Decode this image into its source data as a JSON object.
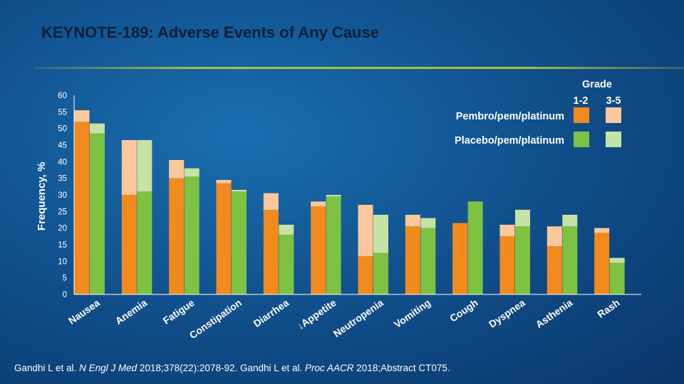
{
  "title": "KEYNOTE-189: Adverse Events of Any Cause",
  "citation": {
    "part1": "Gandhi L et al. ",
    "journal1": "N Engl J Med",
    "part2": " 2018;378(22):2078-92. Gandhi L et al. ",
    "journal2": "Proc AACR",
    "part3": " 2018;Abstract CT075."
  },
  "colors": {
    "pembro_low": "#f28a1e",
    "pembro_high": "#fcc89b",
    "placebo_low": "#7dc242",
    "placebo_high": "#c6e2a4",
    "axis": "#ffffff"
  },
  "chart_data": {
    "type": "bar",
    "stacked": true,
    "ylabel": "Frequency, %",
    "ylim": [
      0,
      60
    ],
    "yticks": [
      0,
      5,
      10,
      15,
      20,
      25,
      30,
      35,
      40,
      45,
      50,
      55,
      60
    ],
    "categories": [
      "Nausea",
      "Anemia",
      "Fatigue",
      "Constipation",
      "Diarrhea",
      "↓Appetite",
      "Neutropenia",
      "Vomiting",
      "Cough",
      "Dyspnea",
      "Asthenia",
      "Rash"
    ],
    "legend": {
      "title": "Grade",
      "grade_labels": [
        "1-2",
        "3-5"
      ],
      "groups": [
        "Pembro/pem/platinum",
        "Placebo/pem/platinum"
      ]
    },
    "series": [
      {
        "name": "Pembro/pem/platinum Grade 1-2",
        "group": "Pembro/pem/platinum",
        "grade": "1-2",
        "values": [
          52.0,
          30.0,
          35.0,
          33.5,
          25.5,
          26.5,
          11.5,
          20.5,
          21.5,
          17.5,
          14.5,
          18.5
        ]
      },
      {
        "name": "Pembro/pem/platinum Grade 3-5",
        "group": "Pembro/pem/platinum",
        "grade": "3-5",
        "values": [
          3.5,
          16.5,
          5.5,
          1.0,
          5.0,
          1.5,
          15.5,
          3.5,
          0.0,
          3.5,
          6.0,
          1.5
        ]
      },
      {
        "name": "Placebo/pem/platinum Grade 1-2",
        "group": "Placebo/pem/platinum",
        "grade": "1-2",
        "values": [
          48.5,
          31.0,
          35.5,
          31.0,
          18.0,
          29.5,
          12.5,
          20.0,
          28.0,
          20.5,
          20.5,
          9.5
        ]
      },
      {
        "name": "Placebo/pem/platinum Grade 3-5",
        "group": "Placebo/pem/platinum",
        "grade": "3-5",
        "values": [
          3.0,
          15.5,
          2.5,
          0.5,
          3.0,
          0.5,
          11.5,
          3.0,
          0.0,
          5.0,
          3.5,
          1.5
        ]
      }
    ]
  }
}
